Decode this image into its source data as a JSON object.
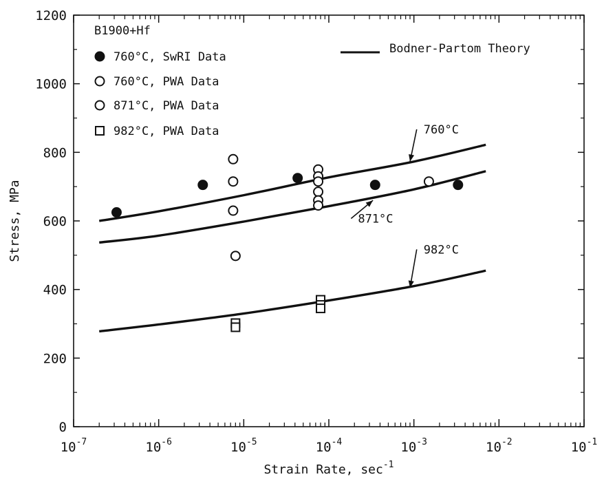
{
  "chart_data": {
    "type": "scatter",
    "title": "",
    "xlabel": "Strain Rate, sec",
    "xlabel_superscript": "-1",
    "ylabel": "Stress, MPa",
    "x_scale": "log",
    "xlim": [
      1e-07,
      0.1
    ],
    "ylim": [
      0,
      1200
    ],
    "grid": false,
    "y_ticks": [
      "0",
      "200",
      "400",
      "600",
      "800",
      "1000",
      "1200"
    ],
    "x_ticks": [
      {
        "value": 1e-07,
        "base": "10",
        "exp": "-7"
      },
      {
        "value": 1e-06,
        "base": "10",
        "exp": "-6"
      },
      {
        "value": 1e-05,
        "base": "10",
        "exp": "-5"
      },
      {
        "value": 0.0001,
        "base": "10",
        "exp": "-4"
      },
      {
        "value": 0.001,
        "base": "10",
        "exp": "-3"
      },
      {
        "value": 0.01,
        "base": "10",
        "exp": "-2"
      },
      {
        "value": 0.1,
        "base": "10",
        "exp": "-1"
      }
    ],
    "legend": {
      "placement": "top-left",
      "group_title": "B1900+Hf",
      "theory_label": "Bodner-Partom Theory"
    },
    "series": [
      {
        "name": "760°C, SwRI Data",
        "marker": "filled-circle",
        "points": [
          {
            "x": 3.2e-07,
            "y": 625
          },
          {
            "x": 3.3e-06,
            "y": 705
          },
          {
            "x": 4.3e-05,
            "y": 725
          },
          {
            "x": 0.00035,
            "y": 705
          },
          {
            "x": 0.0033,
            "y": 705
          }
        ]
      },
      {
        "name": "760°C, PWA Data",
        "marker": "open-circle",
        "points": [
          {
            "x": 7.5e-06,
            "y": 780
          },
          {
            "x": 7.5e-06,
            "y": 715
          },
          {
            "x": 7.5e-05,
            "y": 750
          },
          {
            "x": 7.5e-05,
            "y": 730
          },
          {
            "x": 0.0015,
            "y": 715
          }
        ]
      },
      {
        "name": "871°C, PWA Data",
        "marker": "open-circle",
        "points": [
          {
            "x": 7.5e-06,
            "y": 630
          },
          {
            "x": 8e-06,
            "y": 498
          },
          {
            "x": 7.5e-05,
            "y": 715
          },
          {
            "x": 7.5e-05,
            "y": 685
          },
          {
            "x": 7.5e-05,
            "y": 660
          },
          {
            "x": 7.5e-05,
            "y": 645
          }
        ]
      },
      {
        "name": "982°C, PWA Data",
        "marker": "open-square",
        "points": [
          {
            "x": 8e-06,
            "y": 302
          },
          {
            "x": 8e-06,
            "y": 290
          },
          {
            "x": 8e-05,
            "y": 370
          },
          {
            "x": 8e-05,
            "y": 355
          },
          {
            "x": 8e-05,
            "y": 345
          }
        ]
      }
    ],
    "curves": [
      {
        "label": "760°C",
        "points": [
          {
            "x": 2e-07,
            "y": 600
          },
          {
            "x": 1e-06,
            "y": 628
          },
          {
            "x": 1e-05,
            "y": 675
          },
          {
            "x": 0.0001,
            "y": 727
          },
          {
            "x": 0.001,
            "y": 773
          },
          {
            "x": 0.007,
            "y": 822
          }
        ],
        "label_at": {
          "x": 0.0013,
          "y": 855
        },
        "arrow_to": {
          "x": 0.0009,
          "y": 773
        }
      },
      {
        "label": "871°C",
        "points": [
          {
            "x": 2e-07,
            "y": 537
          },
          {
            "x": 1e-06,
            "y": 557
          },
          {
            "x": 1e-05,
            "y": 598
          },
          {
            "x": 0.0001,
            "y": 643
          },
          {
            "x": 0.001,
            "y": 692
          },
          {
            "x": 0.007,
            "y": 745
          }
        ],
        "label_at": {
          "x": 0.00022,
          "y": 595
        },
        "arrow_to": {
          "x": 0.00033,
          "y": 660
        }
      },
      {
        "label": "982°C",
        "points": [
          {
            "x": 2e-07,
            "y": 278
          },
          {
            "x": 1e-06,
            "y": 298
          },
          {
            "x": 1e-05,
            "y": 330
          },
          {
            "x": 0.0001,
            "y": 368
          },
          {
            "x": 0.001,
            "y": 410
          },
          {
            "x": 0.007,
            "y": 455
          }
        ],
        "label_at": {
          "x": 0.0013,
          "y": 505
        },
        "arrow_to": {
          "x": 0.0009,
          "y": 405
        }
      }
    ]
  }
}
